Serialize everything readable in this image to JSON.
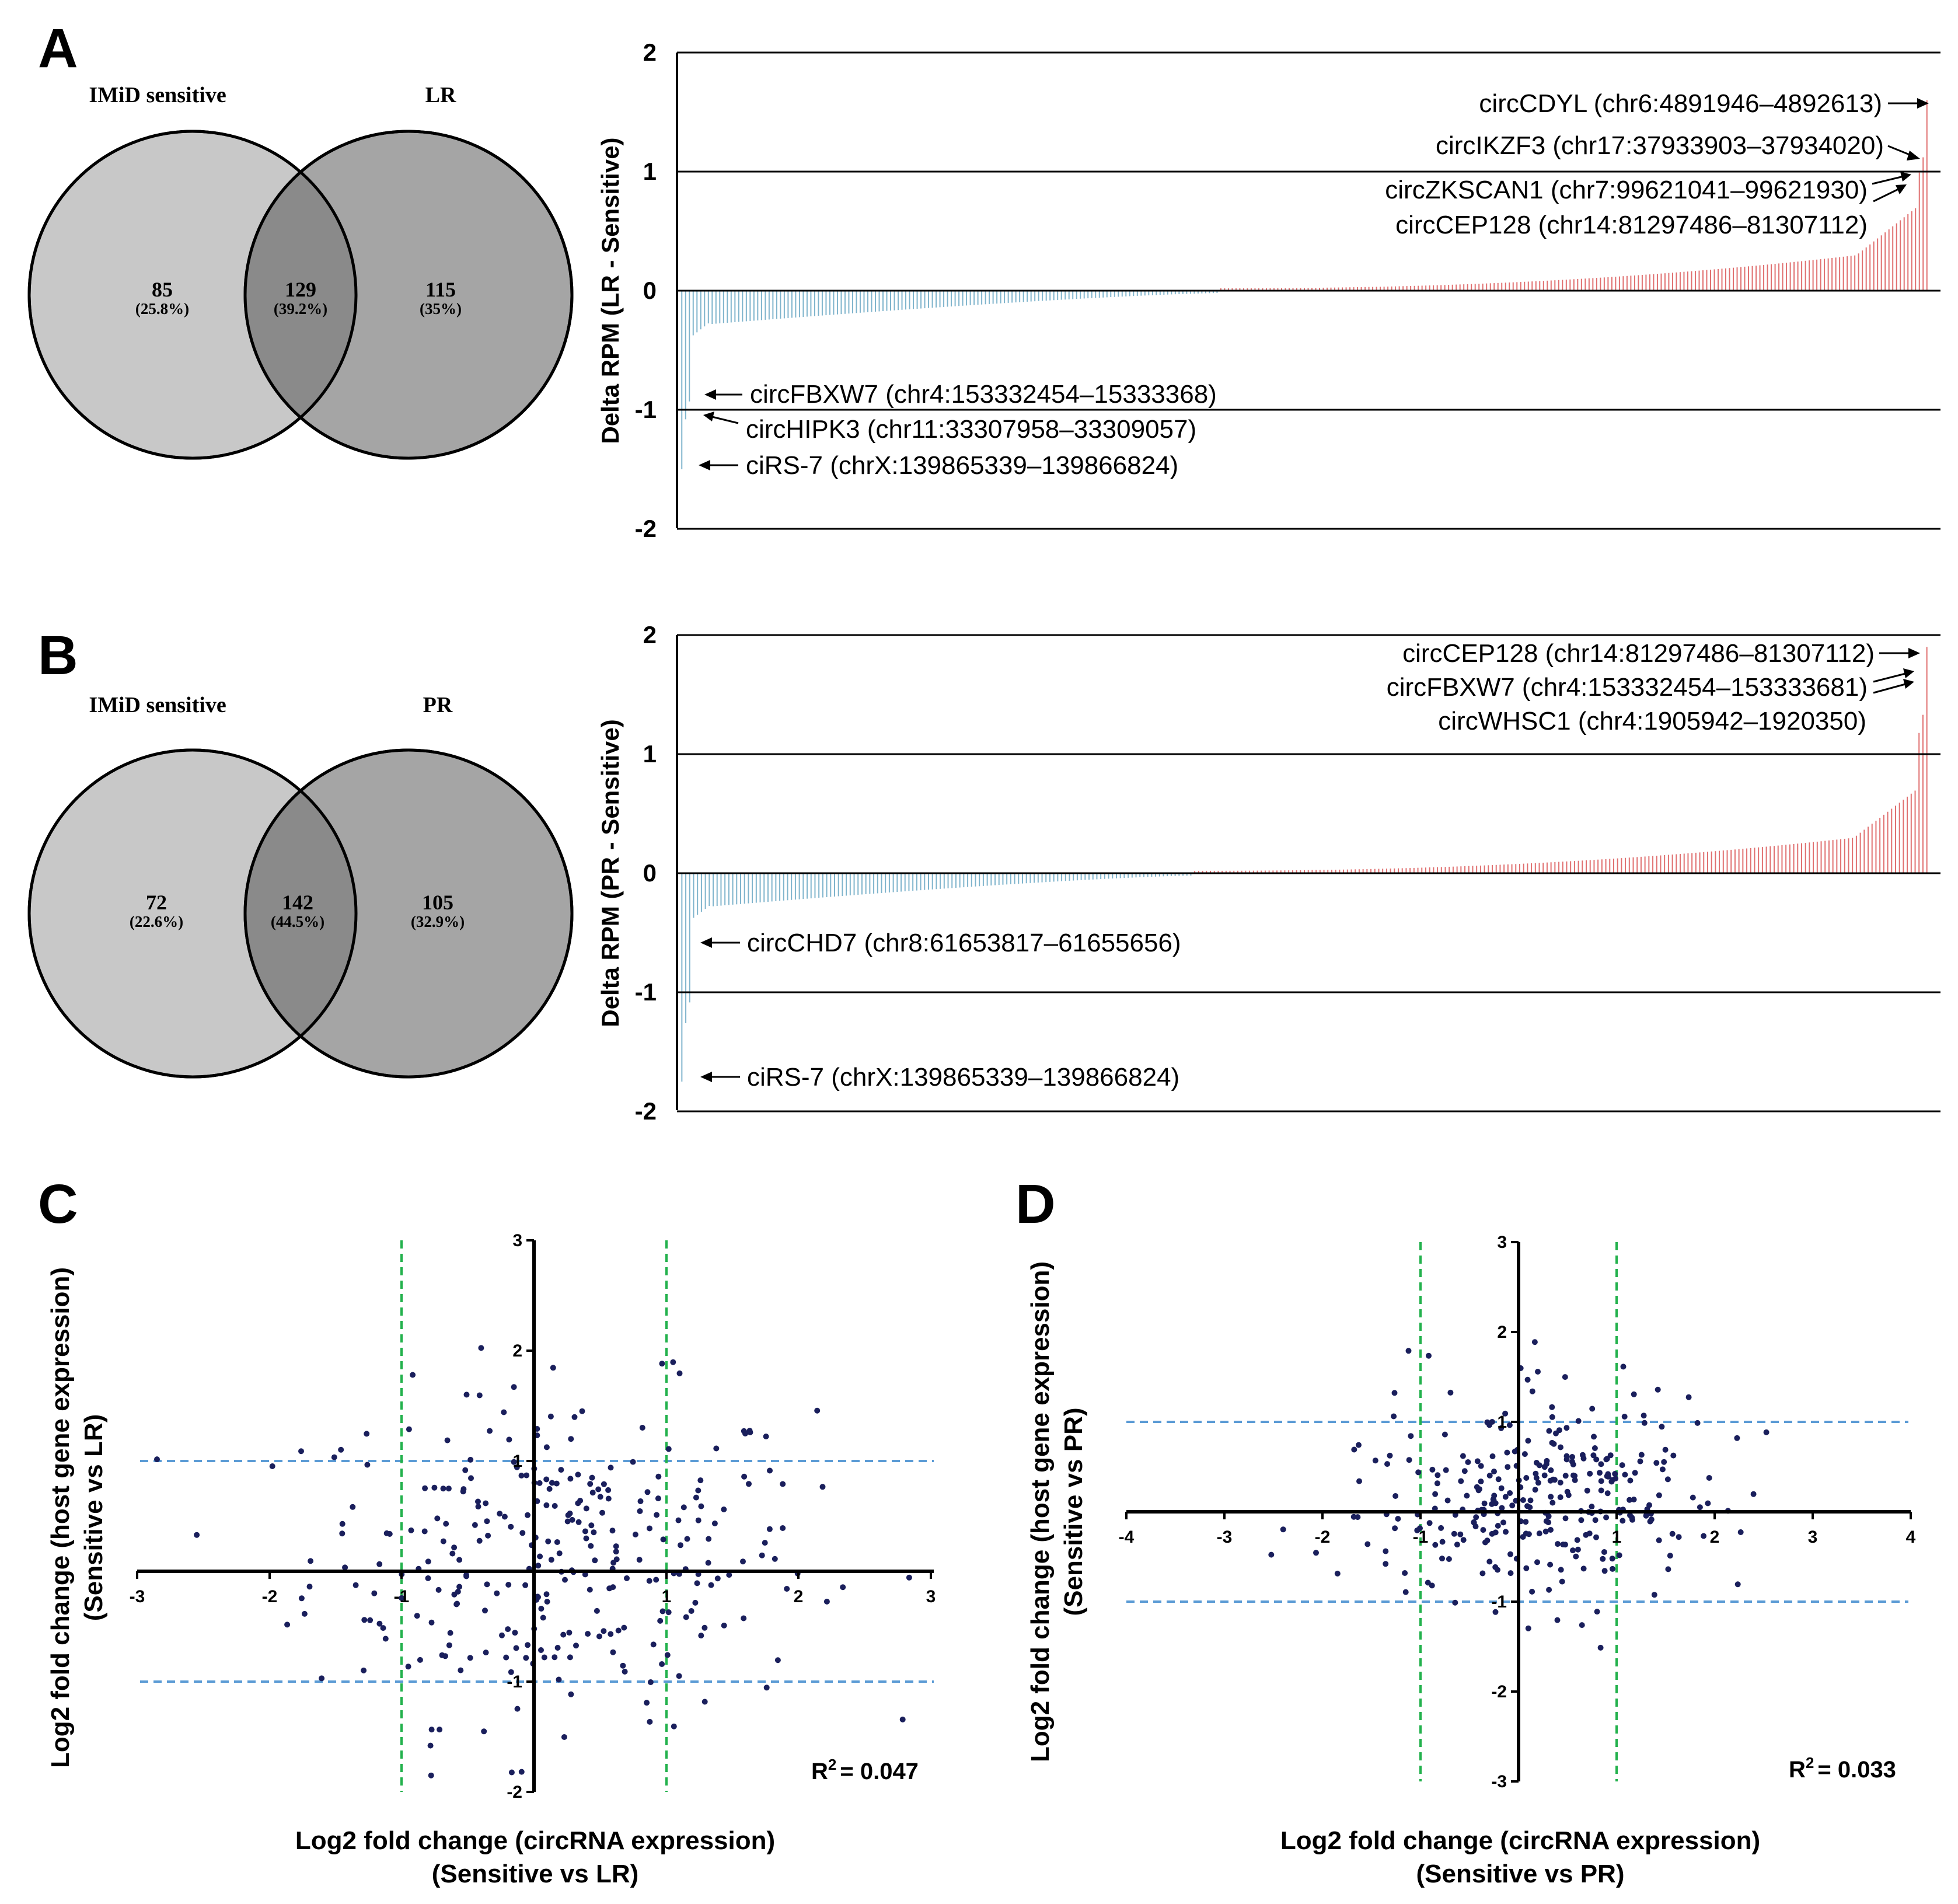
{
  "chart_data": [
    {
      "panel": "A",
      "type": "venn",
      "sets": [
        {
          "name": "IMiD sensitive",
          "only": "85",
          "only_pct": "(25.8%)"
        },
        {
          "name": "LR",
          "only": "115",
          "only_pct": "(35%)"
        }
      ],
      "intersection": "129",
      "intersection_pct": "(39.2%)",
      "colors": {
        "left": "#c8c8c8",
        "right": "#a5a5a5",
        "overlap": "#8a8a8a"
      }
    },
    {
      "panel": "A",
      "type": "bar",
      "ylabel": "Delta RPM (LR - Sensitive)",
      "ylim": [
        -2,
        2
      ],
      "yticks": [
        "2",
        "1",
        "0",
        "-1",
        "-2"
      ],
      "n_bars": 329,
      "negative_count": 142,
      "sorted_values_summary": {
        "min": -1.5,
        "max": 1.6
      },
      "colors": {
        "negative": "#7fb4cc",
        "positive": "#e07070"
      },
      "annotations": [
        "circCDYL (chr6:4891946–4892613)",
        "circIKZF3 (chr17:37933903–37934020)",
        "circZKSCAN1 (chr7:99621041–99621930)",
        "circCEP128 (chr14:81297486–81307112)",
        "circFBXW7 (chr4:153332454–15333368)",
        "circHIPK3 (chr11:33307958–33309057)",
        "ciRS-7 (chrX:139865339–139866824)"
      ]
    },
    {
      "panel": "B",
      "type": "venn",
      "sets": [
        {
          "name": "IMiD sensitive",
          "only": "72",
          "only_pct": "(22.6%)"
        },
        {
          "name": "PR",
          "only": "105",
          "only_pct": "(32.9%)"
        }
      ],
      "intersection": "142",
      "intersection_pct": "(44.5%)"
    },
    {
      "panel": "B",
      "type": "bar",
      "ylabel": "Delta RPM (PR - Sensitive)",
      "ylim": [
        -2,
        2
      ],
      "yticks": [
        "2",
        "1",
        "0",
        "-1",
        "-2"
      ],
      "n_bars": 319,
      "negative_count": 131,
      "sorted_values_summary": {
        "min": -1.75,
        "max": 1.9
      },
      "annotations": [
        "circCEP128 (chr14:81297486–81307112)",
        "circFBXW7 (chr4:153332454–153333681)",
        "circWHSC1 (chr4:1905942–1920350)",
        "circCHD7 (chr8:61653817–61655656)",
        "ciRS-7 (chrX:139865339–139866824)"
      ]
    },
    {
      "panel": "C",
      "type": "scatter",
      "xlabel": [
        "Log2 fold change (circRNA expression)",
        "(Sensitive vs LR)"
      ],
      "ylabel": [
        "Log2 fold change (host gene expression)",
        "(Sensitive vs LR)"
      ],
      "xlim": [
        -3,
        3
      ],
      "ylim": [
        -2,
        3
      ],
      "xticks": [
        "-3",
        "-2",
        "-1",
        "1",
        "2",
        "3"
      ],
      "yticks": [
        "-2",
        "-1",
        "1",
        "2",
        "3"
      ],
      "thresholds": {
        "x": [
          -1,
          1
        ],
        "y": [
          -1,
          1
        ]
      },
      "r2": "= 0.047",
      "n_points": 300,
      "point_color": "#1a1f5c"
    },
    {
      "panel": "D",
      "type": "scatter",
      "xlabel": [
        "Log2 fold change (circRNA expression)",
        "(Sensitive vs PR)"
      ],
      "ylabel": [
        "Log2 fold change (host gene expression)",
        "(Sensitive vs PR)"
      ],
      "xlim": [
        -4,
        4
      ],
      "ylim": [
        -3,
        3
      ],
      "xticks": [
        "-4",
        "-3",
        "-2",
        "-1",
        "1",
        "2",
        "3",
        "4"
      ],
      "yticks": [
        "-3",
        "-2",
        "-1",
        "1",
        "2",
        "3"
      ],
      "thresholds": {
        "x": [
          -1,
          1
        ],
        "y": [
          -1,
          1
        ]
      },
      "r2": "= 0.033",
      "n_points": 300,
      "point_color": "#1a1f5c"
    }
  ],
  "panel_letters": [
    "A",
    "B",
    "C",
    "D"
  ],
  "r2_symbol": "R",
  "r2_sup": "2"
}
